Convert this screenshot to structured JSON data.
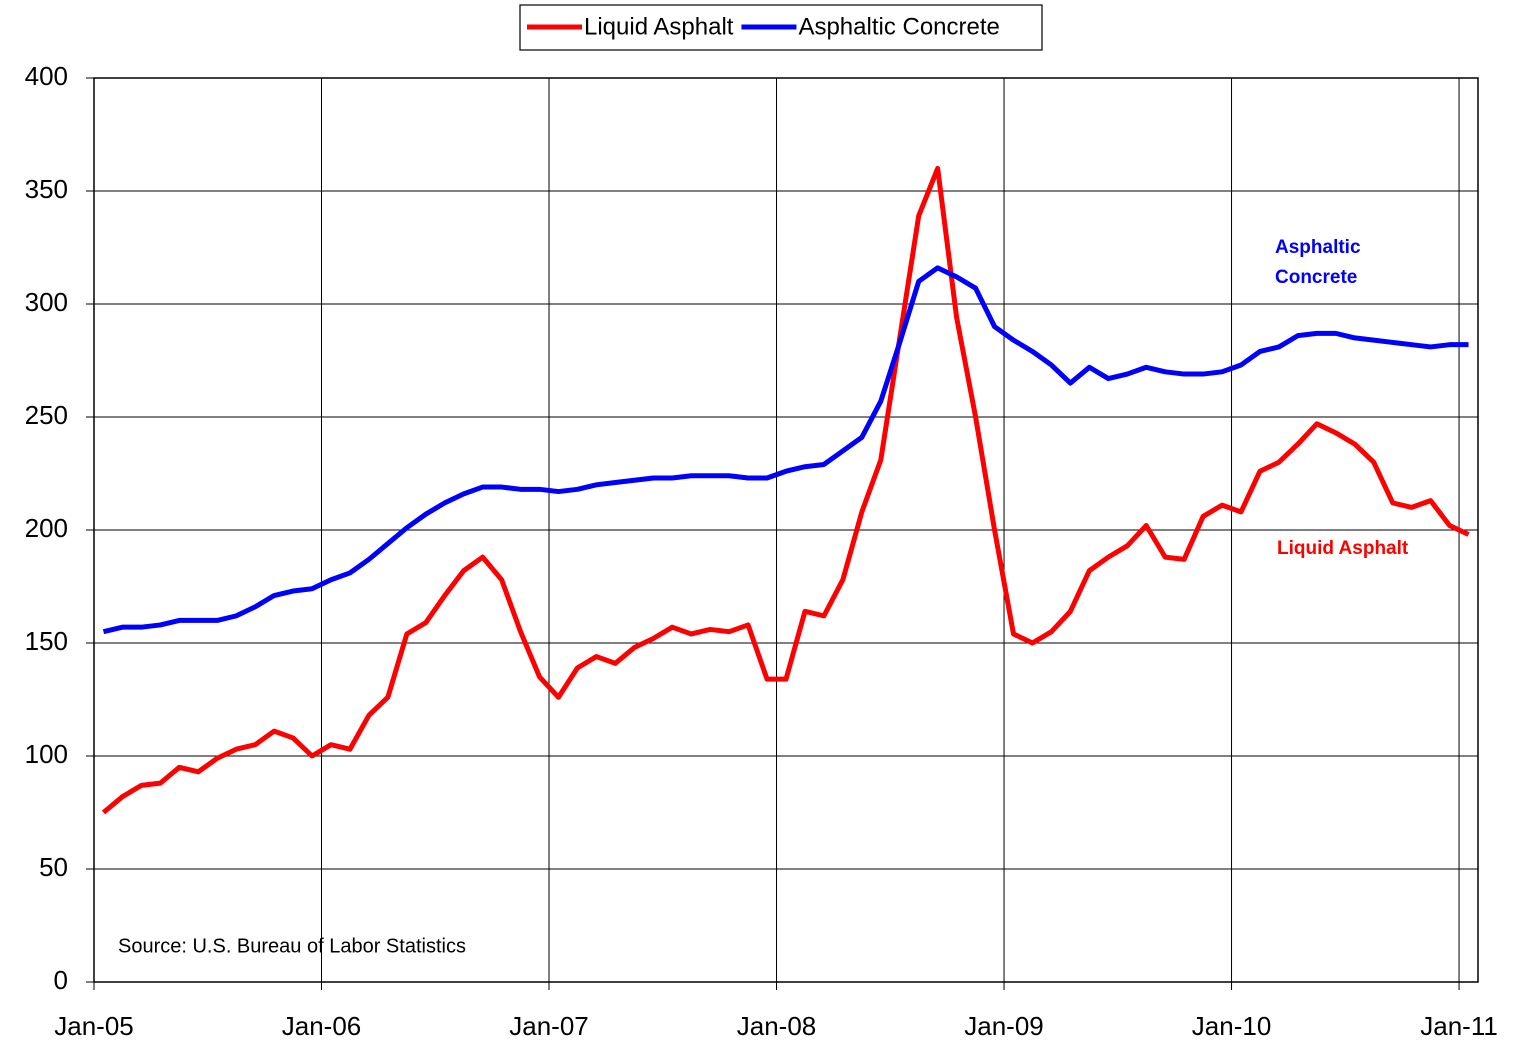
{
  "chart_data": {
    "type": "line",
    "x": [
      0.5,
      1.5,
      2.5,
      3.5,
      4.5,
      5.5,
      6.5,
      7.5,
      8.5,
      9.5,
      10.5,
      11.5,
      12.5,
      13.5,
      14.5,
      15.5,
      16.5,
      17.5,
      18.5,
      19.5,
      20.5,
      21.5,
      22.5,
      23.5,
      24.5,
      25.5,
      26.5,
      27.5,
      28.5,
      29.5,
      30.5,
      31.5,
      32.5,
      33.5,
      34.5,
      35.5,
      36.5,
      37.5,
      38.5,
      39.5,
      40.5,
      41.5,
      42.5,
      43.5,
      44.5,
      45.5,
      46.5,
      47.5,
      48.5,
      49.5,
      50.5,
      51.5,
      52.5,
      53.5,
      54.5,
      55.5,
      56.5,
      57.5,
      58.5,
      59.5,
      60.5,
      61.5,
      62.5,
      63.5,
      64.5,
      65.5,
      66.5,
      67.5,
      68.5,
      69.5,
      70.5,
      71.5,
      72.5
    ],
    "series": [
      {
        "name": "Liquid Asphalt",
        "color": "#ff0000",
        "values": [
          75,
          82,
          87,
          88,
          95,
          93,
          99,
          103,
          105,
          111,
          108,
          100,
          105,
          103,
          118,
          126,
          154,
          159,
          171,
          182,
          188,
          178,
          155,
          135,
          126,
          139,
          144,
          141,
          148,
          152,
          157,
          154,
          156,
          155,
          158,
          134,
          134,
          164,
          162,
          178,
          208,
          231,
          285,
          339,
          360,
          294,
          250,
          200,
          154,
          150,
          155,
          164,
          182,
          188,
          193,
          202,
          188,
          187,
          206,
          211,
          208,
          226,
          230,
          238,
          247,
          243,
          238,
          230,
          212,
          210,
          213,
          202,
          198
        ]
      },
      {
        "name": "Asphaltic Concrete",
        "color": "#0000ff",
        "values": [
          155,
          157,
          157,
          158,
          160,
          160,
          160,
          162,
          166,
          171,
          173,
          174,
          178,
          181,
          187,
          194,
          201,
          207,
          212,
          216,
          219,
          219,
          218,
          218,
          217,
          218,
          220,
          221,
          222,
          223,
          223,
          224,
          224,
          224,
          223,
          223,
          226,
          228,
          229,
          235,
          241,
          257,
          283,
          310,
          316,
          312,
          307,
          290,
          284,
          279,
          273,
          265,
          272,
          267,
          269,
          272,
          270,
          269,
          269,
          270,
          273,
          279,
          281,
          286,
          287,
          287,
          285,
          284,
          283,
          282,
          281,
          282,
          282
        ]
      }
    ],
    "xlim": [
      0,
      73
    ],
    "xticks": [
      {
        "value": 0,
        "label": "Jan-05"
      },
      {
        "value": 12,
        "label": "Jan-06"
      },
      {
        "value": 24,
        "label": "Jan-07"
      },
      {
        "value": 36,
        "label": "Jan-08"
      },
      {
        "value": 48,
        "label": "Jan-09"
      },
      {
        "value": 60,
        "label": "Jan-10"
      },
      {
        "value": 72,
        "label": "Jan-11"
      }
    ],
    "ylim": [
      0,
      400
    ],
    "yticks": [
      0,
      50,
      100,
      150,
      200,
      250,
      300,
      350,
      400
    ],
    "grid": true,
    "legend": "top",
    "annotations": [
      {
        "text": "Source: U.S. Bureau of Labor Statistics"
      },
      {
        "text": "Asphaltic Concrete",
        "color": "#0000ff"
      },
      {
        "text": "Liquid Asphalt",
        "color": "#ff0000"
      }
    ]
  }
}
